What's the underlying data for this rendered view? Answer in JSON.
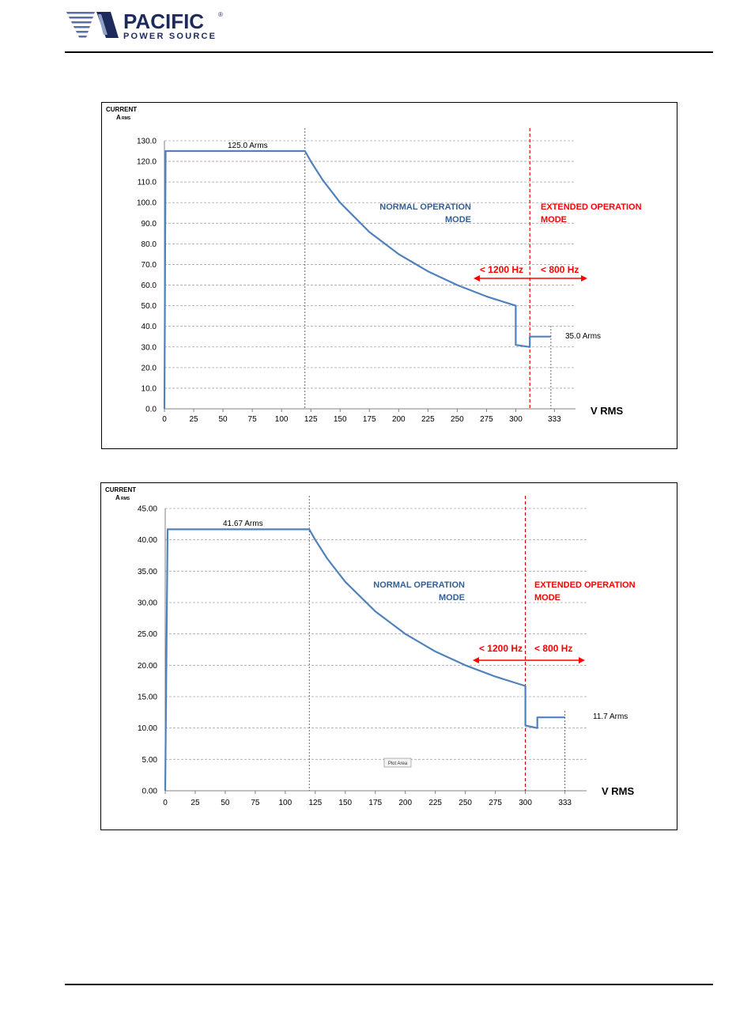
{
  "header": {
    "logo": {
      "word1": "PACIFIC",
      "word2": "POWER SOURCE",
      "registered": "®",
      "color": "#1f2a5c",
      "stripe_color": "#5a6fa5"
    }
  },
  "colors": {
    "curve": "#4f81bd",
    "normal_text": "#365f91",
    "extended": "#ff0000",
    "grid": "#a6a6a6"
  },
  "chart_data": [
    {
      "type": "line",
      "ylabel_line1": "CURRENT",
      "ylabel_line2_main": "A",
      "ylabel_line2_sub": "RMS",
      "xlabel": "V RMS",
      "ylim": [
        0,
        130
      ],
      "yticks": [
        0,
        10,
        20,
        30,
        40,
        50,
        60,
        70,
        80,
        90,
        100,
        110,
        120,
        130
      ],
      "ytick_labels": [
        "0.0",
        "10.0",
        "20.0",
        "30.0",
        "40.0",
        "50.0",
        "60.0",
        "70.0",
        "80.0",
        "90.0",
        "100.0",
        "110.0",
        "120.0",
        "130.0"
      ],
      "xlim": [
        0,
        351
      ],
      "xticks": [
        0,
        25,
        50,
        75,
        100,
        125,
        150,
        175,
        200,
        225,
        250,
        275,
        300,
        333
      ],
      "xtick_labels": [
        "0",
        "25",
        "50",
        "75",
        "100",
        "125",
        "150",
        "175",
        "200",
        "225",
        "250",
        "275",
        "300",
        "333"
      ],
      "grid": "horizontal dashed",
      "series": [
        {
          "x": [
            0,
            1,
            2,
            120,
            125,
            135,
            150,
            175,
            200,
            225,
            250,
            275,
            300,
            300,
            312,
            312,
            330
          ],
          "y": [
            0,
            125,
            125,
            125,
            120,
            111.1,
            100,
            85.7,
            75,
            66.7,
            60,
            54.5,
            50,
            31,
            30,
            35,
            35
          ]
        }
      ],
      "vlines": [
        {
          "x": 120,
          "style": "dashed",
          "color": "#404040"
        },
        {
          "x": 312,
          "style": "dashed",
          "color": "#ff0000"
        },
        {
          "x": 330,
          "style": "dashed",
          "color": "#404040"
        }
      ],
      "annotations": {
        "plateau_label": "125.0 Arms",
        "end_label": "35.0 Arms",
        "normal_line1": "NORMAL OPERATION",
        "normal_line2": "MODE",
        "extended_line1": "EXTENDED OPERATION",
        "extended_line2": "MODE",
        "freq_left": "< 1200 Hz",
        "freq_right": "< 800 Hz"
      }
    },
    {
      "type": "line",
      "ylabel_line1": "CURRENT",
      "ylabel_line2_main": "A",
      "ylabel_line2_sub": "RMS",
      "xlabel": "V RMS",
      "ylim": [
        0,
        45
      ],
      "yticks": [
        0,
        5,
        10,
        15,
        20,
        25,
        30,
        35,
        40,
        45
      ],
      "ytick_labels": [
        "0.00",
        "5.00",
        "10.00",
        "15.00",
        "20.00",
        "25.00",
        "30.00",
        "35.00",
        "40.00",
        "45.00"
      ],
      "xlim": [
        0,
        351
      ],
      "xticks": [
        0,
        25,
        50,
        75,
        100,
        125,
        150,
        175,
        200,
        225,
        250,
        275,
        300,
        333
      ],
      "xtick_labels": [
        "0",
        "25",
        "50",
        "75",
        "100",
        "125",
        "150",
        "175",
        "200",
        "225",
        "250",
        "275",
        "300",
        "333"
      ],
      "grid": "horizontal dashed",
      "series": [
        {
          "x": [
            0,
            2,
            120,
            125,
            135,
            150,
            175,
            200,
            225,
            250,
            275,
            300,
            300,
            310,
            310,
            333
          ],
          "y": [
            0,
            41.67,
            41.67,
            40,
            37,
            33.3,
            28.6,
            25,
            22.2,
            20,
            18.2,
            16.7,
            10.4,
            10,
            11.7,
            11.7
          ]
        }
      ],
      "vlines": [
        {
          "x": 120,
          "style": "dashed",
          "color": "#404040"
        },
        {
          "x": 300,
          "style": "dashed",
          "color": "#cc0000"
        },
        {
          "x": 333,
          "style": "dashed",
          "color": "#404040"
        }
      ],
      "annotations": {
        "plateau_label": "41.67 Arms",
        "end_label": "11.7 Arms",
        "normal_line1": "NORMAL OPERATION",
        "normal_line2": "MODE",
        "extended_line1": "EXTENDED OPERATION",
        "extended_line2": "MODE",
        "freq_left": "< 1200 Hz",
        "freq_right": "< 800 Hz",
        "tooltip": "Plot Area"
      }
    }
  ]
}
